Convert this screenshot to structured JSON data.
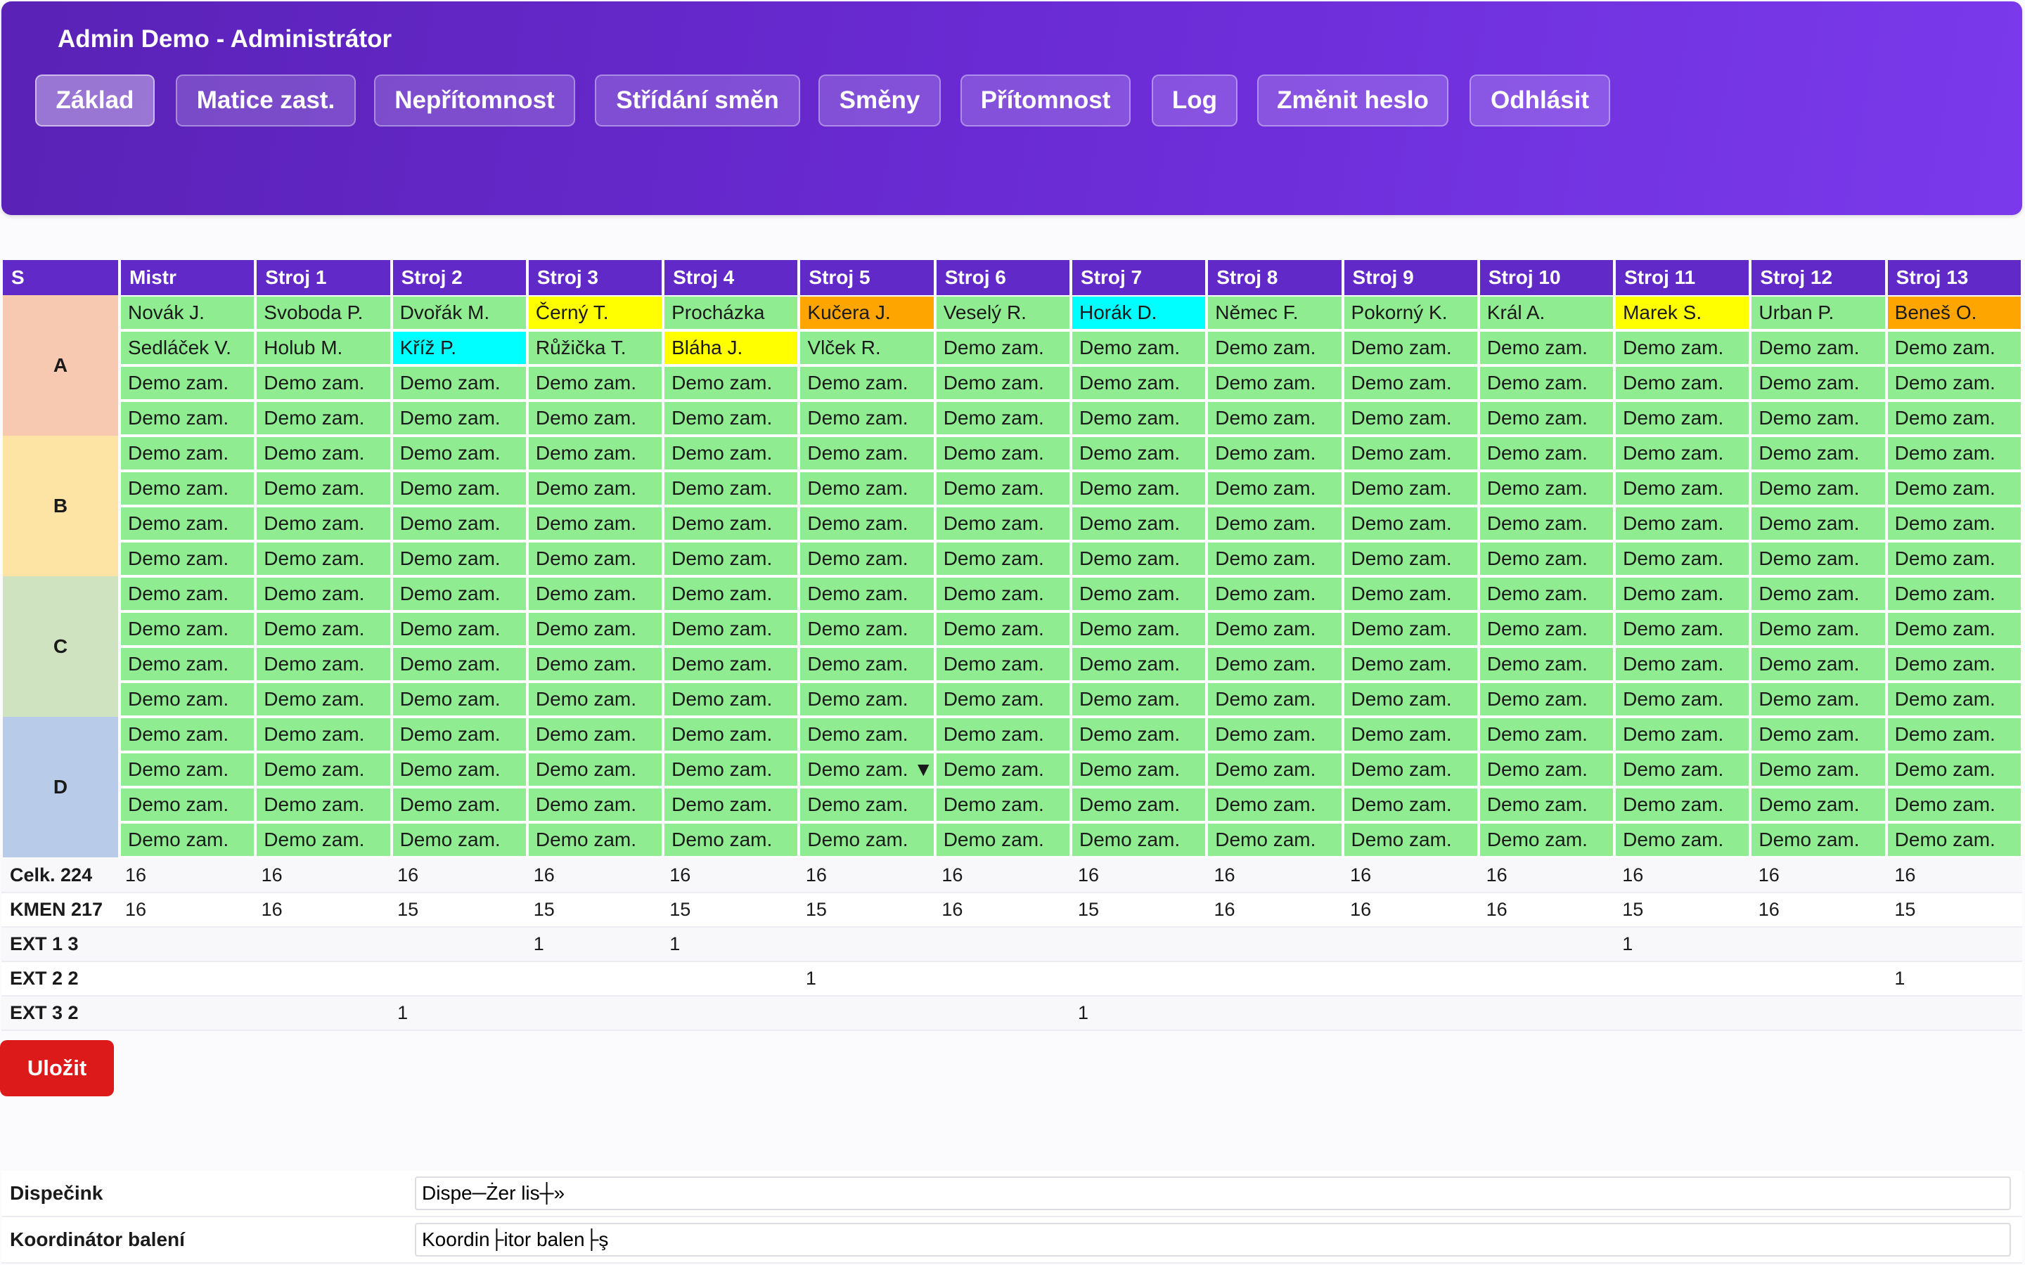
{
  "header": {
    "title": "Admin Demo - Administrátor",
    "nav": [
      "Základ",
      "Matice zast.",
      "Nepřítomnost",
      "Střídání směn",
      "Směny",
      "Přítomnost",
      "Log",
      "Změnit heslo",
      "Odhlásit"
    ],
    "active": "Základ"
  },
  "grid": {
    "columns": [
      "S",
      "Mistr",
      "Stroj 1",
      "Stroj 2",
      "Stroj 3",
      "Stroj 4",
      "Stroj 5",
      "Stroj 6",
      "Stroj 7",
      "Stroj 8",
      "Stroj 9",
      "Stroj 10",
      "Stroj 11",
      "Stroj 12",
      "Stroj 13"
    ],
    "shifts": [
      {
        "name": "A",
        "color": "#f7c9b0"
      },
      {
        "name": "B",
        "color": "#fde4a4"
      },
      {
        "name": "C",
        "color": "#cfe3c0"
      },
      {
        "name": "D",
        "color": "#b8cbe9"
      }
    ],
    "default_cell": "Demo zam.",
    "default_color": "#90ec90",
    "special_rows": [
      [
        "Novák J.",
        "Svoboda P.",
        "Dvořák M.",
        "Černý T.",
        "Procházka",
        "Kučera J.",
        "Veselý R.",
        "Horák D.",
        "Němec F.",
        "Pokorný K.",
        "Král A.",
        "Marek S.",
        "Urban P.",
        "Beneš O."
      ],
      [
        "Sedláček V.",
        "Holub M.",
        "Kříž P.",
        "Růžička T.",
        "Bláha J.",
        "Vlček R."
      ]
    ],
    "highlights": [
      {
        "row": 0,
        "col": 3,
        "color": "#ffff00"
      },
      {
        "row": 0,
        "col": 5,
        "color": "#ffa500"
      },
      {
        "row": 0,
        "col": 7,
        "color": "#00ffff"
      },
      {
        "row": 0,
        "col": 11,
        "color": "#ffff00"
      },
      {
        "row": 0,
        "col": 13,
        "color": "#ffa500"
      },
      {
        "row": 1,
        "col": 2,
        "color": "#00ffff"
      },
      {
        "row": 1,
        "col": 4,
        "color": "#ffff00"
      }
    ],
    "dropdown_cell": {
      "row": 13,
      "col": 5,
      "label": "Demo zam. ▼"
    }
  },
  "summary": [
    {
      "label": "Celk. 224",
      "values": [
        "16",
        "16",
        "16",
        "16",
        "16",
        "16",
        "16",
        "16",
        "16",
        "16",
        "16",
        "16",
        "16",
        "16"
      ]
    },
    {
      "label": "KMEN 217",
      "values": [
        "16",
        "16",
        "15",
        "15",
        "15",
        "15",
        "16",
        "15",
        "16",
        "16",
        "16",
        "15",
        "16",
        "15"
      ]
    },
    {
      "label": "EXT 1 3",
      "values": [
        "",
        "",
        "",
        "1",
        "1",
        "",
        "",
        "",
        "",
        "",
        "",
        "1",
        "",
        ""
      ]
    },
    {
      "label": "EXT 2 2",
      "values": [
        "",
        "",
        "",
        "",
        "",
        "1",
        "",
        "",
        "",
        "",
        "",
        "",
        "",
        "1"
      ]
    },
    {
      "label": "EXT 3 2",
      "values": [
        "",
        "",
        "1",
        "",
        "",
        "",
        "",
        "1",
        "",
        "",
        "",
        "",
        "",
        ""
      ]
    }
  ],
  "save_label": "Uložit",
  "roles": [
    {
      "label": "Dispečink",
      "value": "Dispe─Żer lis┼»"
    },
    {
      "label": "Koordinátor balení",
      "value": "Koordin├itor balen├ş"
    }
  ]
}
